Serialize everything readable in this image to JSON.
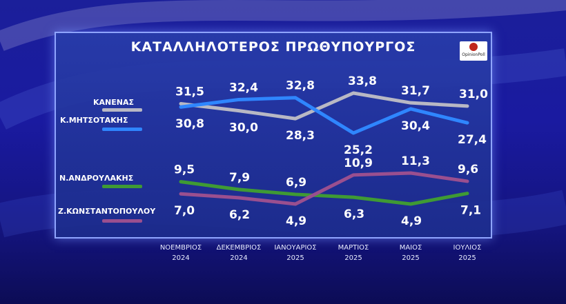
{
  "chart_data": {
    "type": "line",
    "title": "ΚΑΤΑΛΛΗΛΟΤΕΡΟΣ  ΠΡΩΘΥΠΟΥΡΓΟΣ",
    "categories": [
      [
        "ΝΟΕΜΒΡΙΟΣ",
        "2024"
      ],
      [
        "ΔΕΚΕΜΒΡΙΟΣ",
        "2024"
      ],
      [
        "ΙΑΝΟΥΑΡΙΟΣ",
        "2025"
      ],
      [
        "ΜΑΡΤΙΟΣ",
        "2025"
      ],
      [
        "ΜΑΙΟΣ",
        "2025"
      ],
      [
        "ΙΟΥΛΙΟΣ",
        "2025"
      ]
    ],
    "series": [
      {
        "name": "ΚΑΝΕΝΑΣ",
        "color": "#b8b8c4",
        "values": [
          31.5,
          30.0,
          28.3,
          33.8,
          31.7,
          31.0
        ],
        "labels": [
          "31,5",
          "30,0",
          "28,3",
          "33,8",
          "31,7",
          "31,0"
        ]
      },
      {
        "name": "Κ.ΜΗΤΣΟΤΑΚΗΣ",
        "color": "#2f86ff",
        "values": [
          30.8,
          32.4,
          32.8,
          25.2,
          30.4,
          27.4
        ],
        "labels": [
          "30,8",
          "32,4",
          "32,8",
          "25,2",
          "30,4",
          "27,4"
        ]
      },
      {
        "name": "Ν.ΑΝΔΡΟΥΛΑΚΗΣ",
        "color": "#3f9a34",
        "values": [
          9.5,
          7.9,
          6.9,
          6.3,
          4.9,
          7.1
        ],
        "labels": [
          "9,5",
          "7,9",
          "6,9",
          "6,3",
          "4,9",
          "7,1"
        ]
      },
      {
        "name": "Ζ.ΚΩΝΣΤΑΝΤΟΠΟΥΛΟΥ",
        "color": "#9a4f8f",
        "values": [
          7.0,
          6.2,
          4.9,
          10.9,
          11.3,
          9.6
        ],
        "labels": [
          "7,0",
          "6,2",
          "4,9",
          "10,9",
          "11,3",
          "9,6"
        ]
      }
    ],
    "grid": false,
    "legend": "left"
  },
  "logo": {
    "text": "OpinionPoll"
  }
}
